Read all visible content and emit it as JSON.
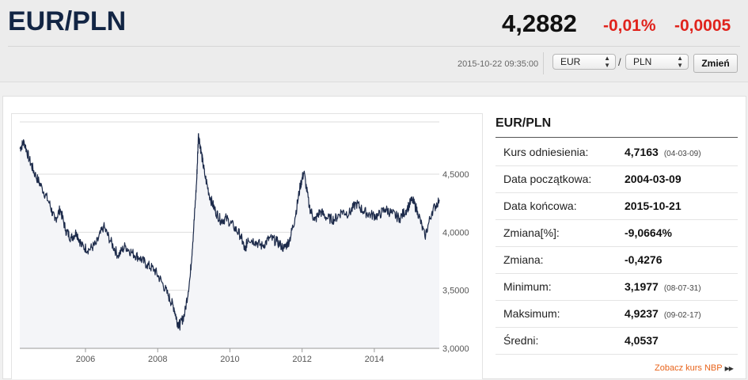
{
  "header": {
    "pair": "EUR/PLN",
    "price": "4,2882",
    "change_pct": "-0,01%",
    "change_abs": "-0,0005",
    "timestamp": "2015-10-22 09:35:00",
    "from_currency": "EUR",
    "to_currency": "PLN",
    "separator": "/",
    "button_label": "Zmień"
  },
  "stats": {
    "title": "EUR/PLN",
    "rows": [
      {
        "label": "Kurs odniesienia:",
        "value": "4,7163",
        "date": "(04-03-09)"
      },
      {
        "label": "Data początkowa:",
        "value": "2004-03-09",
        "date": ""
      },
      {
        "label": "Data końcowa:",
        "value": "2015-10-21",
        "date": ""
      },
      {
        "label": "Zmiana[%]:",
        "value": "-9,0664%",
        "date": ""
      },
      {
        "label": "Zmiana:",
        "value": "-0,4276",
        "date": ""
      },
      {
        "label": "Minimum:",
        "value": "3,1977",
        "date": "(08-07-31)"
      },
      {
        "label": "Maksimum:",
        "value": "4,9237",
        "date": "(09-02-17)"
      },
      {
        "label": "Średni:",
        "value": "4,0537",
        "date": ""
      }
    ],
    "link_label": "Zobacz kurs NBP",
    "link_icon": "double-chevron-right-icon"
  },
  "chart_data": {
    "type": "line",
    "series_color": "#1c2a4a",
    "x_ticks": [
      "2006",
      "2008",
      "2010",
      "2012",
      "2014"
    ],
    "x_tick_values": [
      2006,
      2008,
      2010,
      2012,
      2014
    ],
    "y_ticks": [
      "3,0000",
      "3,5000",
      "4,0000",
      "4,5000"
    ],
    "y_tick_values": [
      3.0,
      3.5,
      4.0,
      4.5
    ],
    "xlim": [
      2004.18,
      2015.8
    ],
    "ylim": [
      3.0,
      4.95
    ],
    "grid": true,
    "x": [
      2004.18,
      2004.3,
      2004.45,
      2004.6,
      2004.8,
      2005.0,
      2005.15,
      2005.3,
      2005.45,
      2005.6,
      2005.75,
      2005.9,
      2006.1,
      2006.3,
      2006.5,
      2006.7,
      2006.9,
      2007.1,
      2007.3,
      2007.5,
      2007.7,
      2007.9,
      2008.1,
      2008.3,
      2008.45,
      2008.55,
      2008.62,
      2008.75,
      2008.9,
      2009.0,
      2009.08,
      2009.13,
      2009.2,
      2009.3,
      2009.45,
      2009.6,
      2009.75,
      2009.9,
      2010.1,
      2010.3,
      2010.42,
      2010.5,
      2010.7,
      2010.9,
      2011.1,
      2011.3,
      2011.5,
      2011.65,
      2011.8,
      2011.95,
      2012.05,
      2012.2,
      2012.35,
      2012.5,
      2012.7,
      2012.9,
      2013.1,
      2013.3,
      2013.5,
      2013.7,
      2013.9,
      2014.1,
      2014.3,
      2014.5,
      2014.7,
      2014.9,
      2015.05,
      2015.2,
      2015.4,
      2015.6,
      2015.8
    ],
    "y": [
      4.72,
      4.78,
      4.62,
      4.5,
      4.38,
      4.25,
      4.1,
      4.2,
      4.02,
      3.95,
      4.0,
      3.88,
      3.85,
      3.9,
      4.05,
      3.92,
      3.8,
      3.88,
      3.82,
      3.78,
      3.72,
      3.68,
      3.58,
      3.45,
      3.35,
      3.22,
      3.2,
      3.3,
      3.62,
      4.05,
      4.45,
      4.85,
      4.7,
      4.5,
      4.3,
      4.18,
      4.1,
      4.12,
      4.05,
      3.97,
      3.84,
      3.95,
      3.92,
      3.88,
      3.95,
      3.92,
      3.86,
      3.93,
      4.12,
      4.4,
      4.52,
      4.22,
      4.1,
      4.18,
      4.12,
      4.11,
      4.18,
      4.16,
      4.25,
      4.18,
      4.15,
      4.14,
      4.2,
      4.16,
      4.12,
      4.2,
      4.28,
      4.18,
      3.96,
      4.18,
      4.28
    ]
  }
}
